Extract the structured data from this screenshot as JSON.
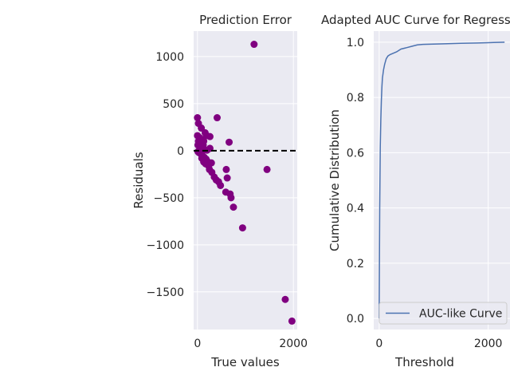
{
  "chart_data": [
    {
      "type": "scatter",
      "title": "Prediction Error",
      "xlabel": "True values",
      "ylabel": "Residuals",
      "xlim": [
        -80,
        2080
      ],
      "ylim": [
        -1900,
        1270
      ],
      "xticks": [
        0,
        2000
      ],
      "xtick_labels": [
        "0",
        "2000"
      ],
      "yticks": [
        1000,
        500,
        0,
        -500,
        -1000,
        -1500
      ],
      "ytick_labels": [
        "1000",
        "500",
        "0",
        "−500",
        "−1000",
        "−1500"
      ],
      "grid": true,
      "point_color": "#800080",
      "reference_line": {
        "y": 0,
        "style": "dashed",
        "color": "#000000"
      },
      "points": [
        [
          1180,
          1130
        ],
        [
          0,
          350
        ],
        [
          20,
          290
        ],
        [
          80,
          240
        ],
        [
          160,
          190
        ],
        [
          260,
          150
        ],
        [
          410,
          350
        ],
        [
          660,
          90
        ],
        [
          0,
          160
        ],
        [
          40,
          140
        ],
        [
          90,
          120
        ],
        [
          130,
          100
        ],
        [
          10,
          60
        ],
        [
          50,
          40
        ],
        [
          100,
          20
        ],
        [
          150,
          10
        ],
        [
          200,
          5
        ],
        [
          260,
          25
        ],
        [
          10,
          -10
        ],
        [
          30,
          -20
        ],
        [
          60,
          -30
        ],
        [
          100,
          -50
        ],
        [
          140,
          -70
        ],
        [
          180,
          -90
        ],
        [
          200,
          -110
        ],
        [
          170,
          -140
        ],
        [
          230,
          -160
        ],
        [
          290,
          -130
        ],
        [
          250,
          -200
        ],
        [
          300,
          -230
        ],
        [
          350,
          -280
        ],
        [
          390,
          -310
        ],
        [
          440,
          -330
        ],
        [
          480,
          -370
        ],
        [
          600,
          -200
        ],
        [
          620,
          -290
        ],
        [
          590,
          -440
        ],
        [
          680,
          -460
        ],
        [
          700,
          -500
        ],
        [
          750,
          -600
        ],
        [
          940,
          -820
        ],
        [
          1450,
          -200
        ],
        [
          1830,
          -1580
        ],
        [
          1970,
          -1810
        ],
        [
          120,
          60
        ],
        [
          70,
          80
        ],
        [
          20,
          100
        ],
        [
          190,
          160
        ],
        [
          90,
          -80
        ],
        [
          130,
          -120
        ]
      ]
    },
    {
      "type": "line",
      "title": "Adapted AUC Curve for Regress",
      "xlabel": "Threshold",
      "ylabel": "Cumulative Distribution",
      "xlim": [
        -100,
        2400
      ],
      "ylim": [
        -0.04,
        1.04
      ],
      "xticks": [
        0,
        2000
      ],
      "xtick_labels": [
        "0",
        "2000"
      ],
      "yticks": [
        0.0,
        0.2,
        0.4,
        0.6,
        0.8,
        1.0
      ],
      "ytick_labels": [
        "0.0",
        "0.2",
        "0.4",
        "0.6",
        "0.8",
        "1.0"
      ],
      "grid": true,
      "legend_position": "bottom-right",
      "series": [
        {
          "name": "AUC-like Curve",
          "color": "#4c72b0",
          "x": [
            0,
            10,
            20,
            30,
            40,
            50,
            60,
            80,
            100,
            130,
            160,
            200,
            260,
            320,
            400,
            500,
            600,
            700,
            800,
            1000,
            1200,
            1500,
            1800,
            2000,
            2100,
            2300
          ],
          "y": [
            0.0,
            0.4,
            0.62,
            0.72,
            0.79,
            0.84,
            0.87,
            0.9,
            0.92,
            0.94,
            0.95,
            0.955,
            0.96,
            0.965,
            0.975,
            0.98,
            0.985,
            0.99,
            0.992,
            0.993,
            0.994,
            0.996,
            0.997,
            0.998,
            0.999,
            1.0
          ]
        }
      ]
    }
  ]
}
